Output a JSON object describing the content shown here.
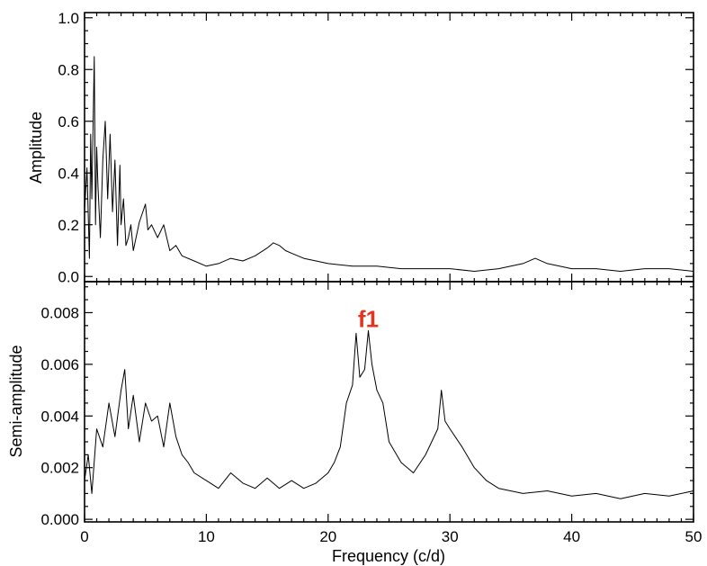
{
  "chart_data": [
    {
      "type": "line",
      "panel": "top",
      "xlabel": "",
      "ylabel": "Amplitude",
      "xlim": [
        0,
        50
      ],
      "ylim": [
        -0.02,
        1.02
      ],
      "yticks": [
        0.0,
        0.2,
        0.4,
        0.6,
        0.8,
        1.0
      ],
      "ytick_labels": [
        "0.0",
        "0.2",
        "0.4",
        "0.6",
        "0.8",
        "1.0"
      ],
      "x_minor_step": 1,
      "y_minor_step": 0.05,
      "series": [
        {
          "x": [
            0.0,
            0.2,
            0.4,
            0.5,
            0.6,
            0.8,
            0.9,
            1.0,
            1.1,
            1.3,
            1.5,
            1.7,
            1.9,
            2.1,
            2.3,
            2.5,
            2.7,
            2.9,
            3.0,
            3.2,
            3.4,
            3.6,
            3.8,
            4.0,
            4.5,
            5.0,
            5.2,
            5.5,
            6.0,
            6.5,
            7.0,
            7.5,
            8.0,
            9.0,
            10.0,
            11.0,
            12.0,
            13.0,
            14.0,
            15.0,
            15.5,
            16.0,
            16.5,
            17.0,
            18.0,
            19.0,
            20.0,
            22.0,
            24.0,
            26.0,
            28.0,
            30.0,
            32.0,
            34.0,
            35.0,
            36.0,
            37.0,
            38.0,
            40.0,
            42.0,
            44.0,
            46.0,
            48.0,
            50.0
          ],
          "y": [
            0.25,
            0.42,
            0.07,
            0.55,
            0.3,
            0.85,
            0.2,
            0.5,
            0.35,
            0.15,
            0.45,
            0.6,
            0.3,
            0.55,
            0.25,
            0.45,
            0.12,
            0.43,
            0.2,
            0.3,
            0.12,
            0.15,
            0.2,
            0.1,
            0.21,
            0.28,
            0.18,
            0.2,
            0.15,
            0.2,
            0.1,
            0.12,
            0.08,
            0.06,
            0.04,
            0.05,
            0.07,
            0.06,
            0.08,
            0.11,
            0.13,
            0.12,
            0.1,
            0.09,
            0.07,
            0.06,
            0.05,
            0.04,
            0.04,
            0.03,
            0.03,
            0.03,
            0.02,
            0.03,
            0.04,
            0.05,
            0.07,
            0.05,
            0.03,
            0.03,
            0.02,
            0.03,
            0.03,
            0.02
          ]
        }
      ]
    },
    {
      "type": "line",
      "panel": "bottom",
      "xlabel": "Frequency (c/d)",
      "ylabel": "Semi-amplitude",
      "xlim": [
        0,
        50
      ],
      "ylim": [
        -0.0001,
        0.0092
      ],
      "xticks": [
        0,
        10,
        20,
        30,
        40,
        50
      ],
      "xtick_labels": [
        "0",
        "10",
        "20",
        "30",
        "40",
        "50"
      ],
      "yticks": [
        0.0,
        0.002,
        0.004,
        0.006,
        0.008
      ],
      "ytick_labels": [
        "0.000",
        "0.002",
        "0.004",
        "0.006",
        "0.008"
      ],
      "x_minor_step": 1,
      "y_minor_step": 0.0005,
      "annotations": [
        {
          "text": "f1",
          "x": 23.3,
          "y": 0.0073
        }
      ],
      "series": [
        {
          "x": [
            0.0,
            0.3,
            0.6,
            1.0,
            1.5,
            2.0,
            2.5,
            3.0,
            3.3,
            3.6,
            4.0,
            4.5,
            5.0,
            5.5,
            6.0,
            6.5,
            7.0,
            7.5,
            8.0,
            8.5,
            9.0,
            10.0,
            11.0,
            12.0,
            13.0,
            14.0,
            15.0,
            16.0,
            17.0,
            18.0,
            19.0,
            20.0,
            20.5,
            21.0,
            21.5,
            22.0,
            22.3,
            22.6,
            23.0,
            23.3,
            23.6,
            24.0,
            24.5,
            25.0,
            26.0,
            27.0,
            28.0,
            29.0,
            29.3,
            29.6,
            30.0,
            31.0,
            32.0,
            33.0,
            34.0,
            36.0,
            38.0,
            40.0,
            42.0,
            44.0,
            46.0,
            48.0,
            50.0
          ],
          "y": [
            0.0015,
            0.0025,
            0.001,
            0.0035,
            0.0028,
            0.0045,
            0.0032,
            0.005,
            0.0058,
            0.0035,
            0.0048,
            0.003,
            0.0045,
            0.0038,
            0.004,
            0.0028,
            0.0045,
            0.0032,
            0.0025,
            0.0022,
            0.0018,
            0.0015,
            0.0012,
            0.0018,
            0.0014,
            0.0012,
            0.0016,
            0.0012,
            0.0015,
            0.0012,
            0.0014,
            0.0018,
            0.0022,
            0.0028,
            0.0045,
            0.0052,
            0.0072,
            0.0055,
            0.0058,
            0.0073,
            0.006,
            0.005,
            0.0045,
            0.003,
            0.0022,
            0.0018,
            0.0025,
            0.0035,
            0.005,
            0.0038,
            0.0035,
            0.0028,
            0.002,
            0.0015,
            0.0012,
            0.001,
            0.0011,
            0.0009,
            0.001,
            0.0008,
            0.001,
            0.0009,
            0.0011
          ]
        }
      ]
    }
  ]
}
